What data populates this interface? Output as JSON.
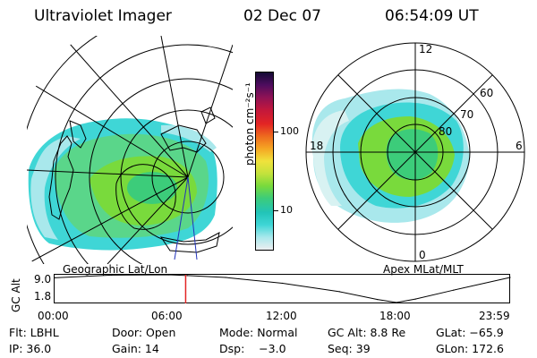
{
  "header": {
    "instrument": "Ultraviolet Imager",
    "date": "02 Dec 07",
    "time": "06:54:09 UT"
  },
  "geo_map": {
    "label": "Geographic Lat/Lon"
  },
  "polar_plot": {
    "label": "Apex MLat/MLT",
    "mlt_labels": [
      "12",
      "18",
      "6",
      "0"
    ],
    "lat_labels": [
      "60",
      "70",
      "80"
    ]
  },
  "colorbar": {
    "label": "photon cm⁻²s⁻¹",
    "ticks": [
      "100",
      "10"
    ],
    "scale": "log",
    "colors": [
      "#eceef0",
      "#a9e8ec",
      "#3fd6d6",
      "#22c4b8",
      "#3ccc7a",
      "#79da3c",
      "#c4e23c",
      "#f0e23c",
      "#f5a623",
      "#ee6a1e",
      "#e32424",
      "#c2173c",
      "#8e1255",
      "#4d0c5e",
      "#140a35"
    ]
  },
  "timeline": {
    "ylabel": "GC Alt",
    "ymax_label": "9.0",
    "ymin_label": "1.8",
    "xticks": [
      "00:00",
      "06:00",
      "12:00",
      "18:00",
      "23:59"
    ],
    "current_time_hours": 6.9
  },
  "footer": {
    "filter": "Flt: LBHL",
    "door": "Door: Open",
    "mode": "Mode: Normal",
    "gc_alt": "GC Alt: 8.8 Re",
    "glat": "GLat: −65.9",
    "ip": "IP: 36.0",
    "gain": "Gain: 14",
    "dsp": "Dsp:    −3.0",
    "seq": "Seq: 39",
    "glon": "GLon: 172.6"
  },
  "chart_data": {
    "type": "line",
    "title": "",
    "xlabel": "",
    "ylabel": "GC Alt",
    "ylim": [
      1.8,
      9.0
    ],
    "x": [
      "00:00",
      "03:00",
      "06:00",
      "07:00",
      "09:00",
      "12:00",
      "15:00",
      "17:00",
      "18:00",
      "19:00",
      "21:00",
      "23:59"
    ],
    "series": [
      {
        "values": [
          8.2,
          8.9,
          9.0,
          8.8,
          8.3,
          6.8,
          4.6,
          2.6,
          1.8,
          2.7,
          5.0,
          8.3
        ]
      }
    ],
    "markers": [
      {
        "x": "06:54",
        "color": "#e32424"
      }
    ]
  }
}
